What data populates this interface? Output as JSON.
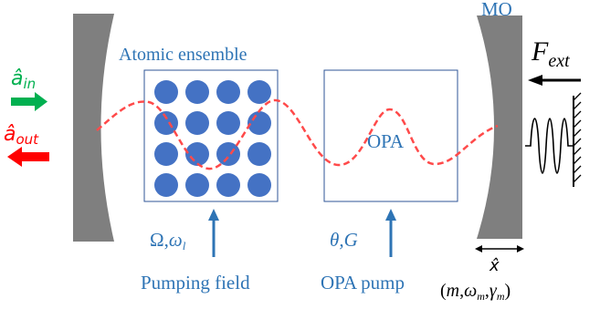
{
  "labels": {
    "atomic_ensemble": "Atomic ensemble",
    "opa": "OPA",
    "mo": "MO",
    "pumping_field": "Pumping field",
    "opa_pump": "OPA pump",
    "a_in": "â",
    "a_in_sub": "in",
    "a_out": "â",
    "a_out_sub": "out",
    "f_ext": "F",
    "f_ext_sub": "ext",
    "omega_left": "Ω,",
    "omega_l": "ω",
    "omega_l_sub": "l",
    "theta_g": "θ,G",
    "x_hat": "x̂",
    "mo_params_open": "(",
    "mo_m": "m",
    "mo_comma1": ",",
    "mo_omega": "ω",
    "mo_omega_sub": "m",
    "mo_comma2": ",",
    "mo_gamma": "γ",
    "mo_gamma_sub": "m",
    "mo_params_close": ")"
  },
  "colors": {
    "mirror": "#7f7f7f",
    "blue_text": "#2e74b5",
    "atom": "#4472c4",
    "box_border": "#2f5597",
    "beam": "#ff4a4a",
    "in_arrow": "#00b050",
    "out_arrow": "#ff0000",
    "black": "#000000"
  },
  "atoms_grid": {
    "rows": 4,
    "cols": 4
  },
  "icons": {
    "spring": "spring-icon",
    "wall": "wall-icon"
  }
}
